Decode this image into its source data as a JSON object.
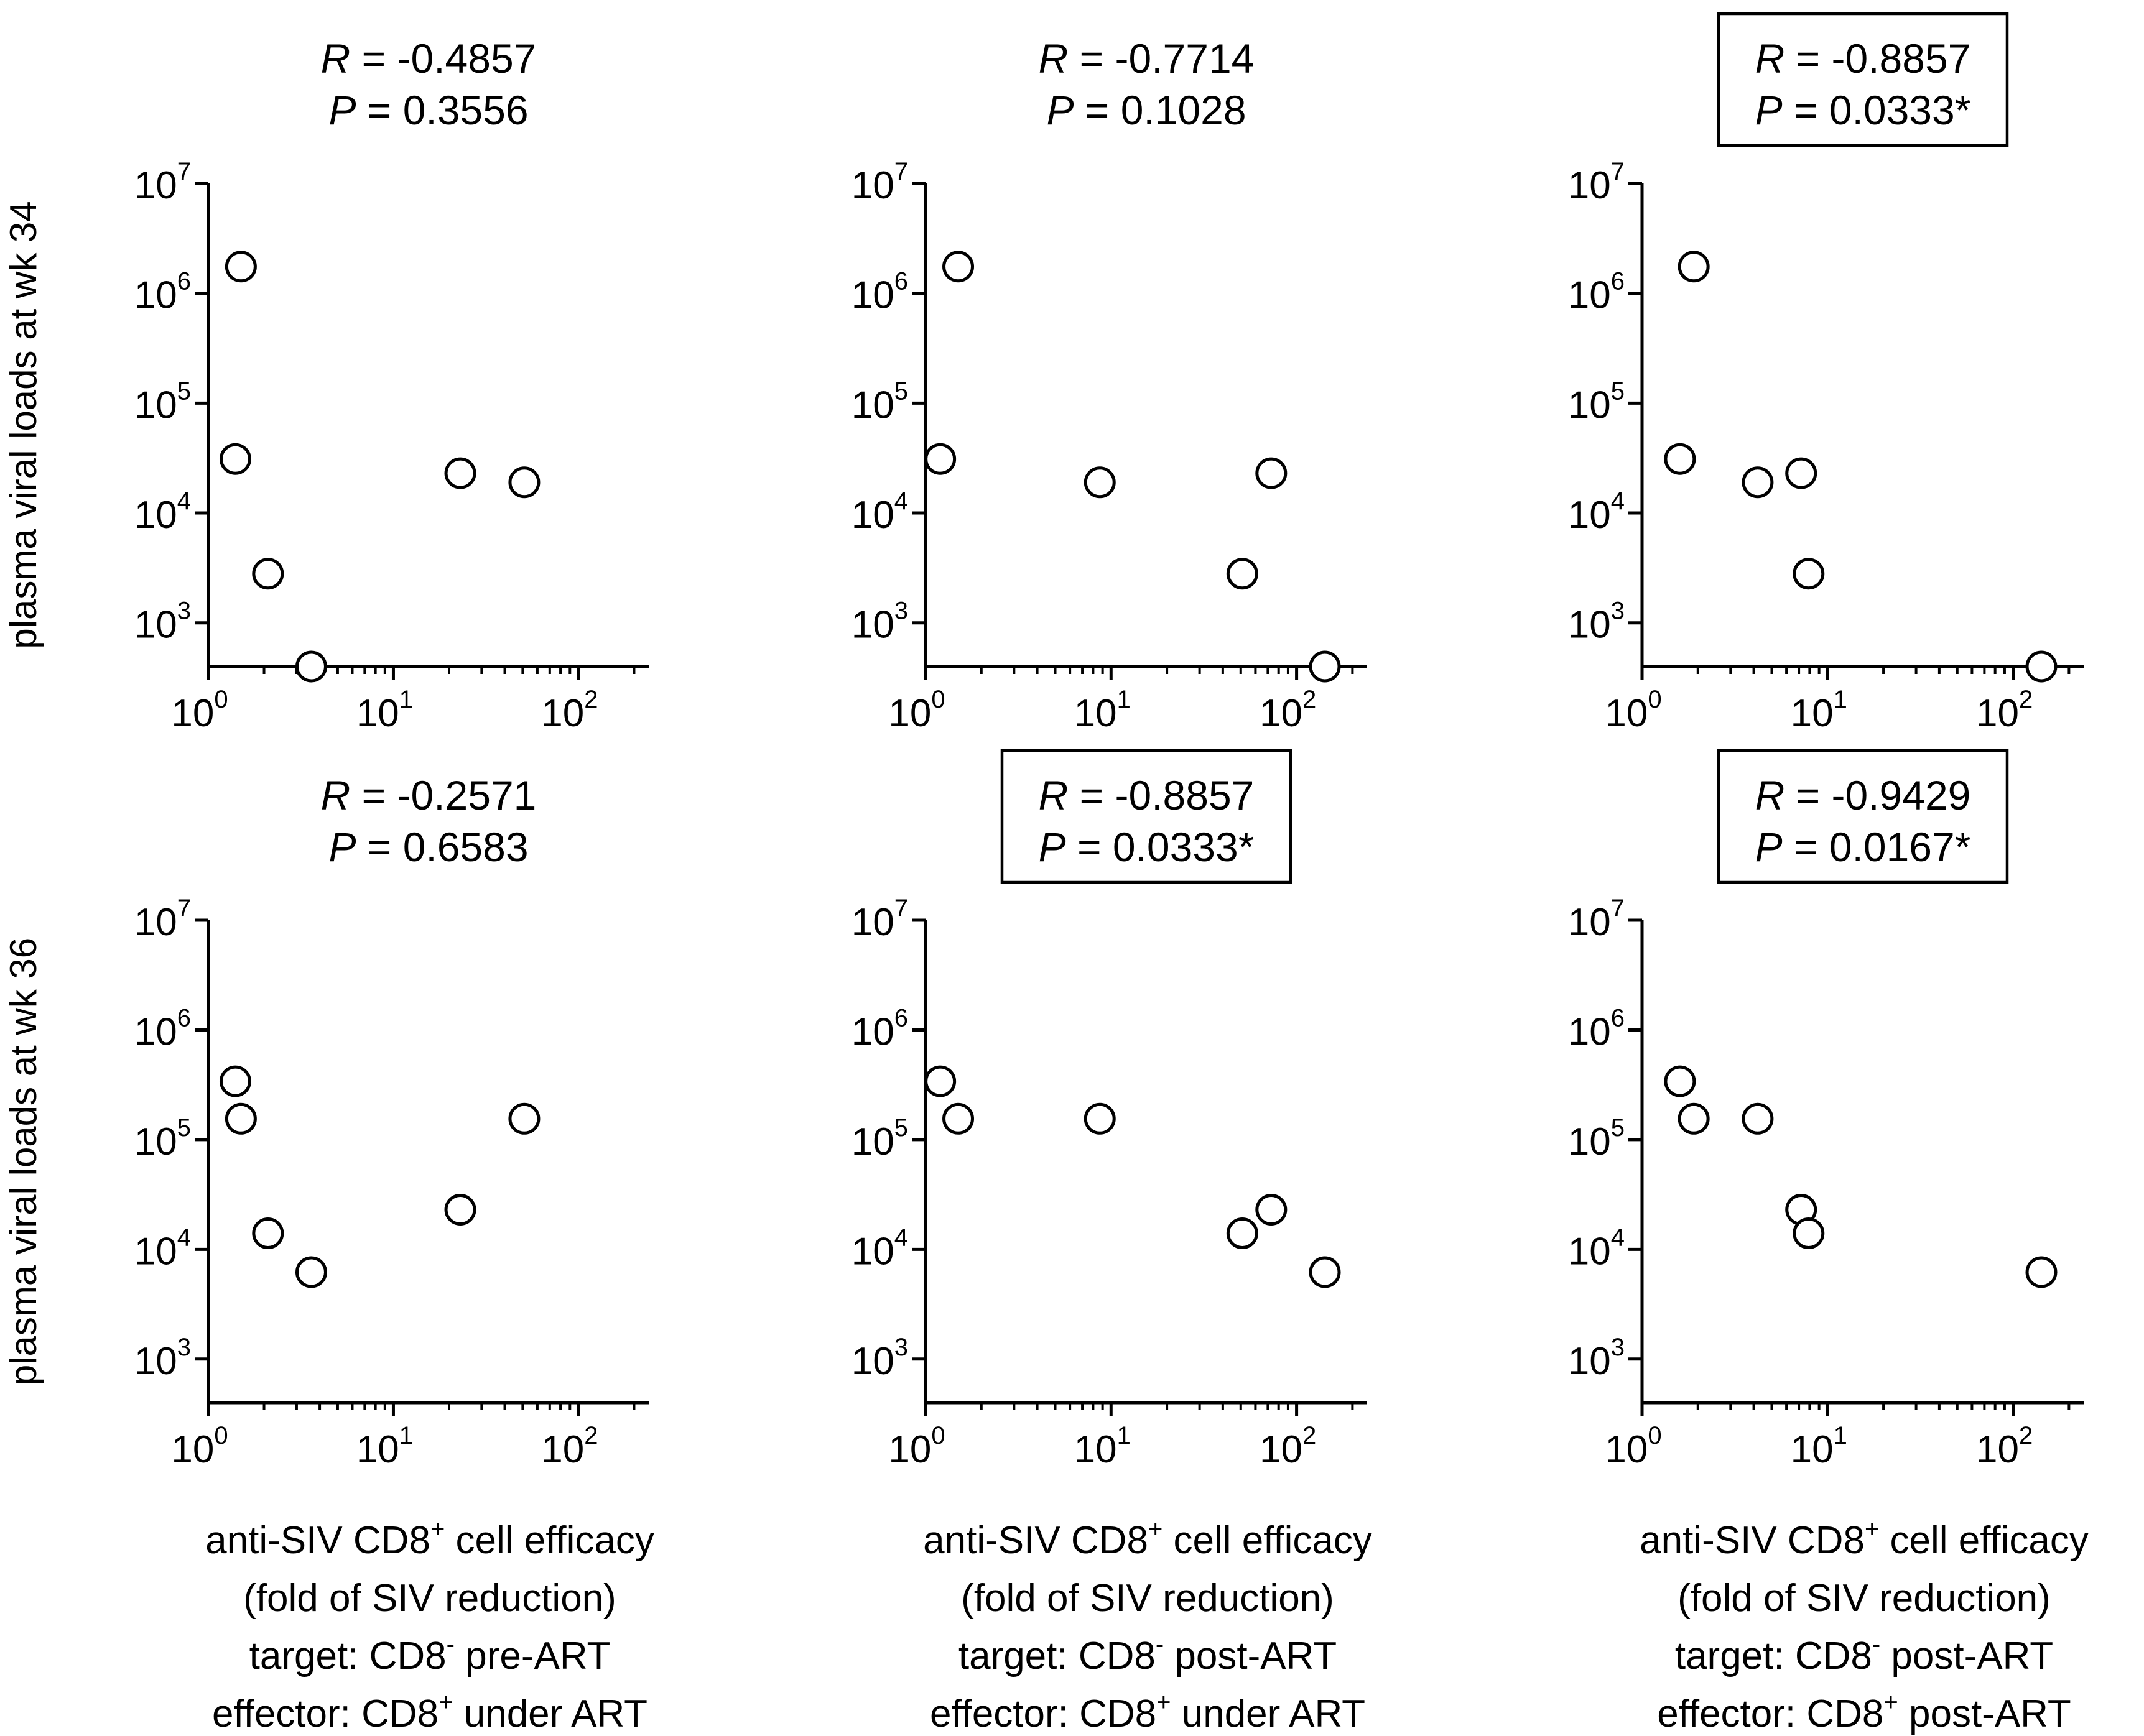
{
  "chart_data": [
    {
      "type": "scatter",
      "panel": "row1-col1",
      "stats": {
        "r_label": "R",
        "r_value": "-0.4857",
        "p_label": "P",
        "p_value": "0.3556",
        "boxed": false
      },
      "ylabel": "plasma viral loads at wk 34",
      "x_scale": "log",
      "y_scale": "log",
      "xlim": [
        1,
        240
      ],
      "ylim": [
        400,
        10000000
      ],
      "x_ticks": [
        1,
        10,
        100
      ],
      "y_ticks": [
        1000,
        10000,
        100000,
        1000000,
        10000000
      ],
      "x": [
        1.4,
        1.5,
        2.1,
        3.6,
        23,
        51
      ],
      "y": [
        31000,
        1750000,
        2800,
        400,
        23000,
        19000
      ],
      "xlabel_lines": [
        {
          "pre": "anti-SIV CD8",
          "sup": "+",
          "post": " cell efficacy"
        },
        {
          "pre": "(fold of SIV reduction)",
          "sup": "",
          "post": ""
        },
        {
          "pre": "target: CD8",
          "sup": "-",
          "post": " pre-ART"
        },
        {
          "pre": "effector: CD8",
          "sup": "+",
          "post": " under ART"
        }
      ]
    },
    {
      "type": "scatter",
      "panel": "row1-col2",
      "stats": {
        "r_label": "R",
        "r_value": "-0.7714",
        "p_label": "P",
        "p_value": "0.1028",
        "boxed": false
      },
      "ylabel": "",
      "x_scale": "log",
      "y_scale": "log",
      "xlim": [
        1,
        240
      ],
      "ylim": [
        400,
        10000000
      ],
      "x_ticks": [
        1,
        10,
        100
      ],
      "y_ticks": [
        1000,
        10000,
        100000,
        1000000,
        10000000
      ],
      "x": [
        1.2,
        1.5,
        8.7,
        51,
        73,
        142
      ],
      "y": [
        31000,
        1750000,
        19000,
        2800,
        23000,
        400
      ],
      "xlabel_lines": [
        {
          "pre": "anti-SIV CD8",
          "sup": "+",
          "post": " cell efficacy"
        },
        {
          "pre": "(fold of SIV reduction)",
          "sup": "",
          "post": ""
        },
        {
          "pre": "target: CD8",
          "sup": "-",
          "post": " post-ART"
        },
        {
          "pre": "effector: CD8",
          "sup": "+",
          "post": " under ART"
        }
      ]
    },
    {
      "type": "scatter",
      "panel": "row1-col3",
      "stats": {
        "r_label": "R",
        "r_value": "-0.8857",
        "p_label": "P",
        "p_value": "0.0333*",
        "boxed": true
      },
      "ylabel": "",
      "x_scale": "log",
      "y_scale": "log",
      "xlim": [
        1,
        240
      ],
      "ylim": [
        400,
        10000000
      ],
      "x_ticks": [
        1,
        10,
        100
      ],
      "y_ticks": [
        1000,
        10000,
        100000,
        1000000,
        10000000
      ],
      "x": [
        1.6,
        1.9,
        4.2,
        7.2,
        7.9,
        142
      ],
      "y": [
        31000,
        1750000,
        19000,
        23000,
        2800,
        400
      ],
      "xlabel_lines": [
        {
          "pre": "anti-SIV CD8",
          "sup": "+",
          "post": " cell efficacy"
        },
        {
          "pre": "(fold of SIV reduction)",
          "sup": "",
          "post": ""
        },
        {
          "pre": "target: CD8",
          "sup": "-",
          "post": " post-ART"
        },
        {
          "pre": "effector: CD8",
          "sup": "+",
          "post": " post-ART"
        }
      ]
    },
    {
      "type": "scatter",
      "panel": "row2-col1",
      "stats": {
        "r_label": "R",
        "r_value": "-0.2571",
        "p_label": "P",
        "p_value": "0.6583",
        "boxed": false
      },
      "ylabel": "plasma viral loads at wk 36",
      "x_scale": "log",
      "y_scale": "log",
      "xlim": [
        1,
        240
      ],
      "ylim": [
        400,
        10000000
      ],
      "x_ticks": [
        1,
        10,
        100
      ],
      "y_ticks": [
        1000,
        10000,
        100000,
        1000000,
        10000000
      ],
      "x": [
        1.4,
        1.5,
        2.1,
        3.6,
        23,
        51
      ],
      "y": [
        340000,
        155000,
        14000,
        6200,
        23000,
        155000
      ],
      "xlabel_lines": []
    },
    {
      "type": "scatter",
      "panel": "row2-col2",
      "stats": {
        "r_label": "R",
        "r_value": "-0.8857",
        "p_label": "P",
        "p_value": "0.0333*",
        "boxed": true
      },
      "ylabel": "",
      "x_scale": "log",
      "y_scale": "log",
      "xlim": [
        1,
        240
      ],
      "ylim": [
        400,
        10000000
      ],
      "x_ticks": [
        1,
        10,
        100
      ],
      "y_ticks": [
        1000,
        10000,
        100000,
        1000000,
        10000000
      ],
      "x": [
        1.2,
        1.5,
        8.7,
        51,
        73,
        142
      ],
      "y": [
        340000,
        155000,
        155000,
        14000,
        23000,
        6200
      ],
      "xlabel_lines": []
    },
    {
      "type": "scatter",
      "panel": "row2-col3",
      "stats": {
        "r_label": "R",
        "r_value": "-0.9429",
        "p_label": "P",
        "p_value": "0.0167*",
        "boxed": true
      },
      "ylabel": "",
      "x_scale": "log",
      "y_scale": "log",
      "xlim": [
        1,
        240
      ],
      "ylim": [
        400,
        10000000
      ],
      "x_ticks": [
        1,
        10,
        100
      ],
      "y_ticks": [
        1000,
        10000,
        100000,
        1000000,
        10000000
      ],
      "x": [
        1.6,
        1.9,
        4.2,
        7.2,
        7.9,
        142
      ],
      "y": [
        340000,
        155000,
        155000,
        23000,
        14000,
        6200
      ],
      "xlabel_lines": []
    }
  ]
}
